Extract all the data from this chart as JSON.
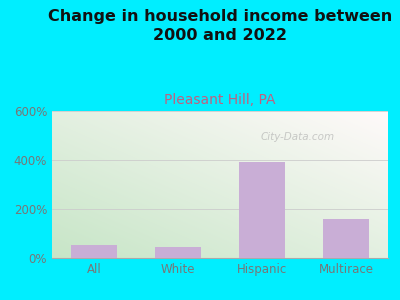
{
  "title": "Change in household income between\n2000 and 2022",
  "subtitle": "Pleasant Hill, PA",
  "categories": [
    "All",
    "White",
    "Hispanic",
    "Multirace"
  ],
  "values": [
    55,
    45,
    390,
    160
  ],
  "bar_color": "#c9aed6",
  "background_outer": "#00eeff",
  "title_fontsize": 11.5,
  "subtitle_fontsize": 10,
  "subtitle_color": "#c06080",
  "tick_label_color": "#777777",
  "ylim": [
    0,
    600
  ],
  "yticks": [
    0,
    200,
    400,
    600
  ],
  "ytick_labels": [
    "0%",
    "200%",
    "400%",
    "600%"
  ],
  "watermark": "City-Data.com"
}
